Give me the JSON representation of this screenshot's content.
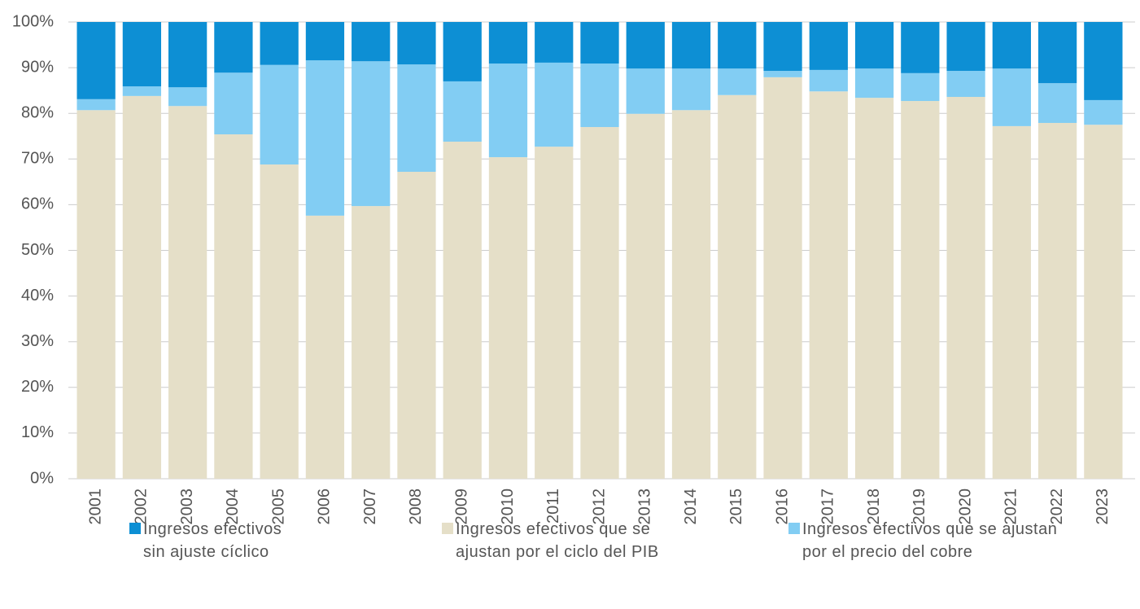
{
  "chart_data": {
    "type": "stacked_bar",
    "categories": [
      "2001",
      "2002",
      "2003",
      "2004",
      "2005",
      "2006",
      "2007",
      "2008",
      "2009",
      "2010",
      "2011",
      "2012",
      "2013",
      "2014",
      "2015",
      "2016",
      "2017",
      "2018",
      "2019",
      "2020",
      "2021",
      "2022",
      "2023"
    ],
    "series": [
      {
        "name": "Ingresos efectivos que se ajustan por el ciclo del PIB",
        "color": "#e5dfc8",
        "values": [
          80.7,
          83.8,
          81.6,
          75.4,
          68.8,
          57.6,
          59.7,
          67.2,
          73.8,
          70.4,
          72.7,
          77.0,
          79.9,
          80.7,
          84.0,
          87.9,
          84.8,
          83.4,
          82.7,
          83.6,
          77.2,
          77.9,
          77.5
        ]
      },
      {
        "name": "Ingresos efectivos que se ajustan por el precio del cobre",
        "color": "#82cdf3",
        "values": [
          2.4,
          2.1,
          4.1,
          13.5,
          21.8,
          34.0,
          31.7,
          23.5,
          13.2,
          20.5,
          18.4,
          13.9,
          9.9,
          9.1,
          5.8,
          1.4,
          4.7,
          6.4,
          6.1,
          5.7,
          12.6,
          8.7,
          5.4
        ]
      },
      {
        "name": "Ingresos efectivos sin ajuste cíclico",
        "color": "#0d8fd4",
        "values": [
          16.9,
          14.1,
          14.3,
          11.1,
          9.4,
          8.4,
          8.6,
          9.3,
          13.0,
          9.1,
          8.9,
          9.1,
          10.2,
          10.2,
          10.2,
          10.7,
          10.5,
          10.2,
          11.2,
          10.7,
          10.2,
          13.4,
          17.1
        ]
      }
    ],
    "ylim": [
      0,
      100
    ],
    "yticks": [
      {
        "value": 0,
        "label": "0%"
      },
      {
        "value": 10,
        "label": "10%"
      },
      {
        "value": 20,
        "label": "20%"
      },
      {
        "value": 30,
        "label": "30%"
      },
      {
        "value": 40,
        "label": "40%"
      },
      {
        "value": 50,
        "label": "50%"
      },
      {
        "value": 60,
        "label": "60%"
      },
      {
        "value": 70,
        "label": "70%"
      },
      {
        "value": 80,
        "label": "80%"
      },
      {
        "value": 90,
        "label": "90%"
      },
      {
        "value": 100,
        "label": "100%"
      }
    ],
    "grid": true
  }
}
